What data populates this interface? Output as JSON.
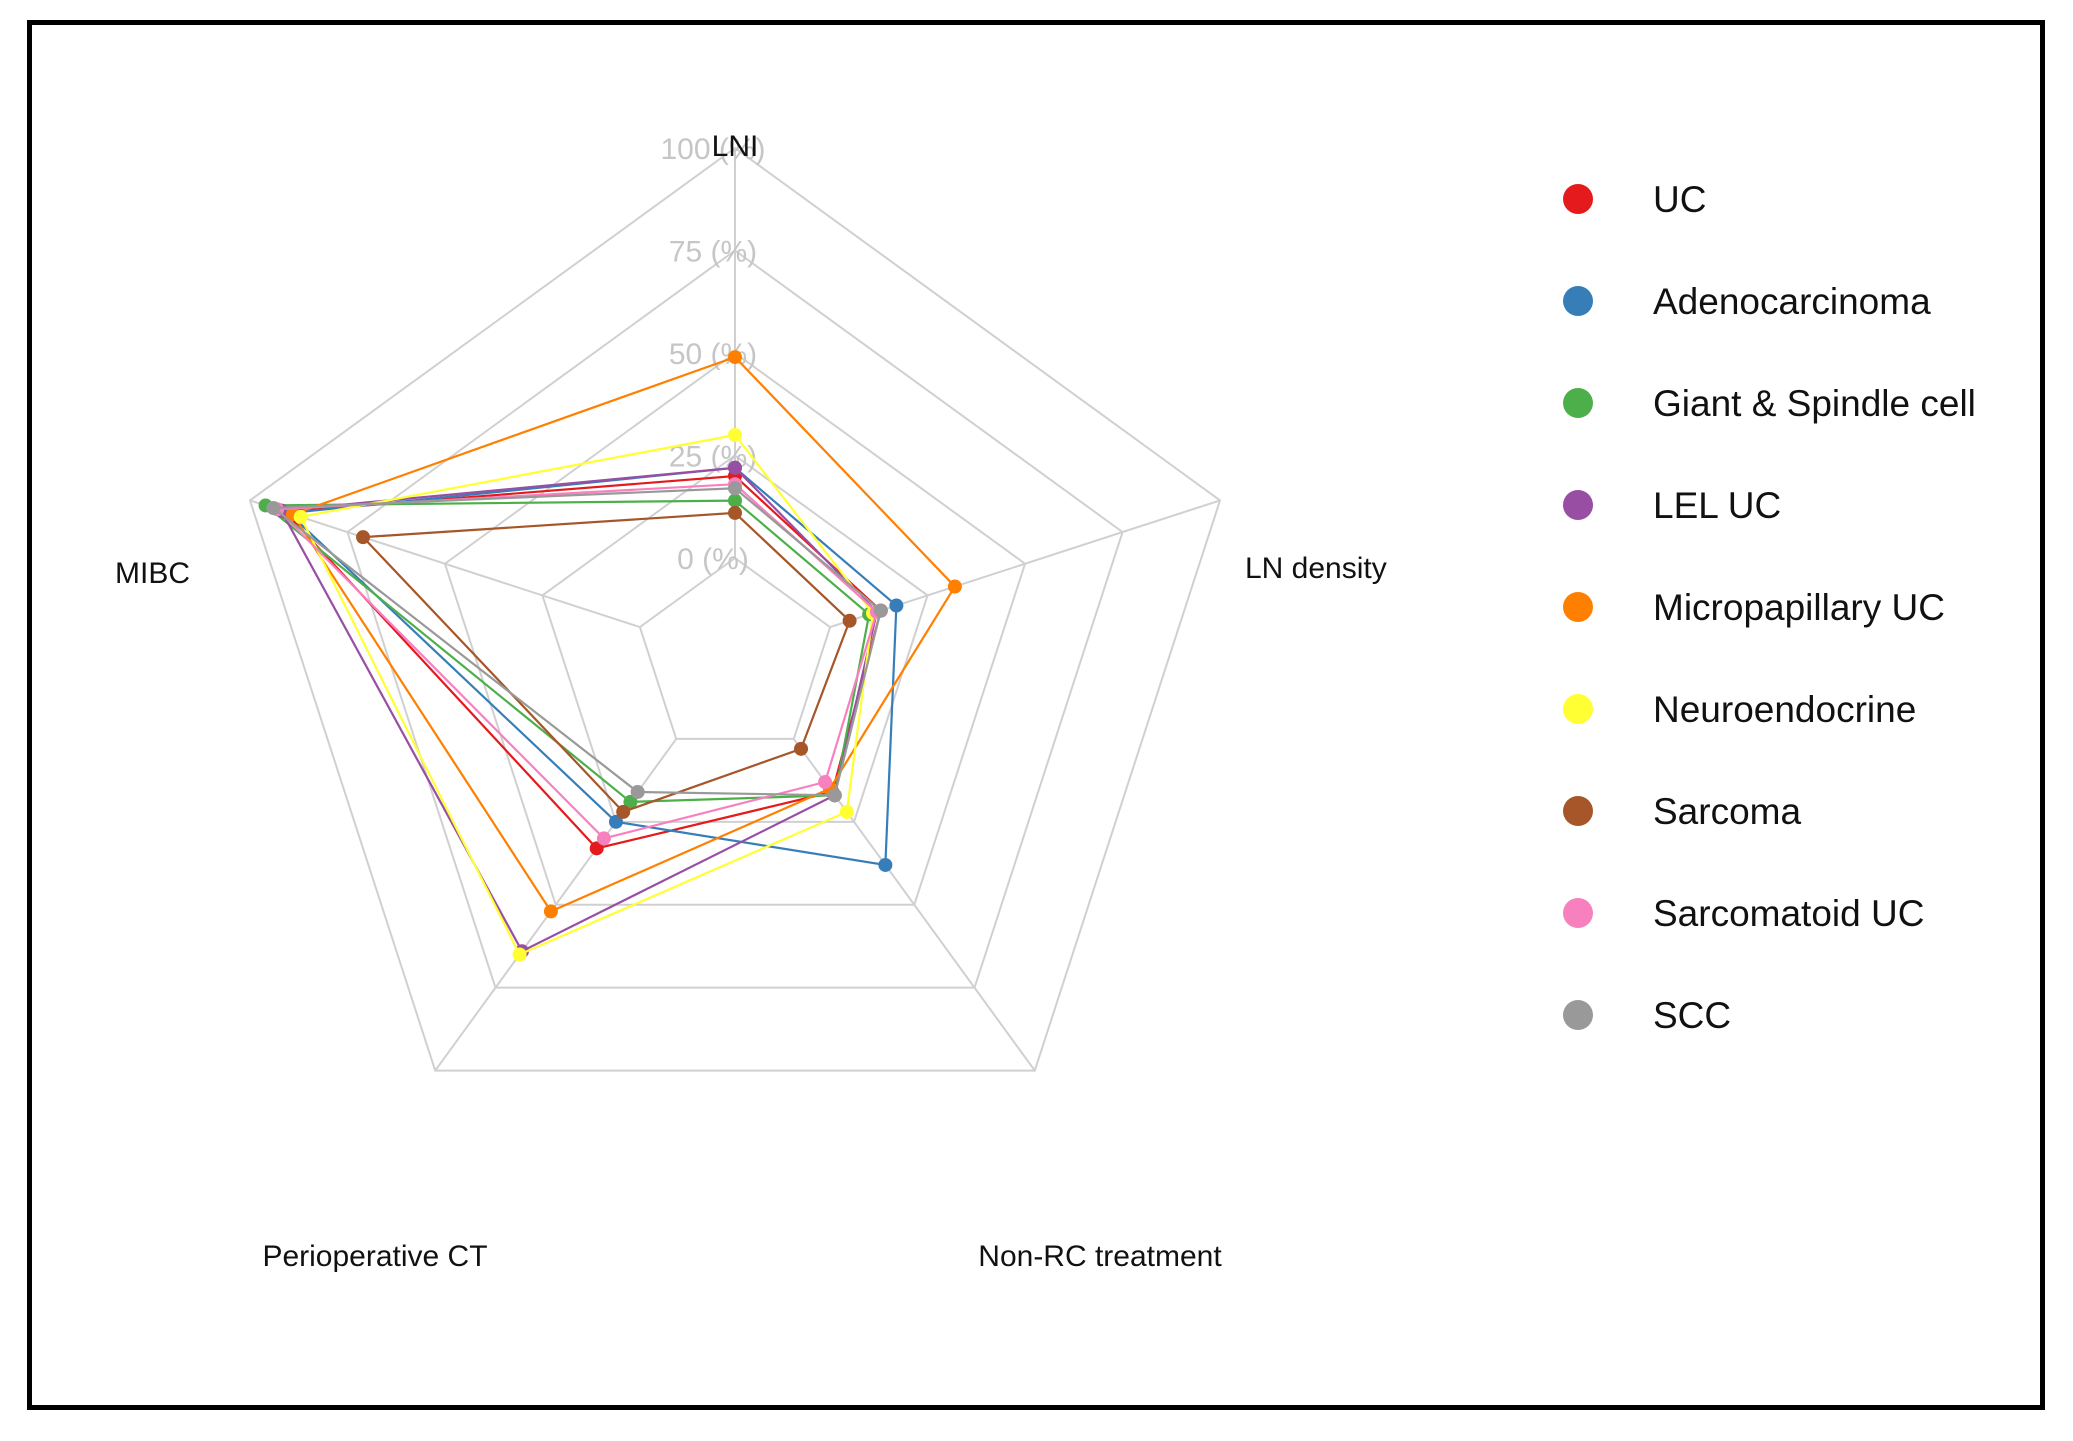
{
  "chart_data": {
    "type": "radar",
    "axes": [
      "LNI",
      "LN density",
      "Non-RC treatment",
      "Perioperative CT",
      "MIBC"
    ],
    "tick_labels": [
      "0 (%)",
      "25 (%)",
      "50 (%)",
      "75 (%)",
      "100 (%)"
    ],
    "range": [
      0,
      100
    ],
    "grid": true,
    "legend_position": "right",
    "series": [
      {
        "name": "UC",
        "color": "#e41a1c",
        "values": [
          20,
          13,
          16,
          33,
          91
        ]
      },
      {
        "name": "Adenocarcinoma",
        "color": "#377eb8",
        "values": [
          22,
          17,
          38,
          25,
          90
        ]
      },
      {
        "name": "Giant & Spindle cell",
        "color": "#4daf4a",
        "values": [
          14,
          10,
          17,
          19,
          96
        ]
      },
      {
        "name": "LEL UC",
        "color": "#984ea3",
        "values": [
          22,
          12,
          17,
          64,
          92
        ]
      },
      {
        "name": "Micropapillary UC",
        "color": "#ff7f00",
        "values": [
          49,
          32,
          15,
          52,
          89
        ]
      },
      {
        "name": "Neuroendocrine",
        "color": "#ffff33",
        "values": [
          30,
          11,
          22,
          65,
          87
        ]
      },
      {
        "name": "Sarcoma",
        "color": "#a65628",
        "values": [
          11,
          5,
          3,
          22,
          71
        ]
      },
      {
        "name": "Sarcomatoid UC",
        "color": "#f781bf",
        "values": [
          18,
          12,
          13,
          30,
          93
        ]
      },
      {
        "name": "SCC",
        "color": "#999999",
        "values": [
          17,
          13,
          17,
          16,
          94
        ]
      }
    ]
  }
}
